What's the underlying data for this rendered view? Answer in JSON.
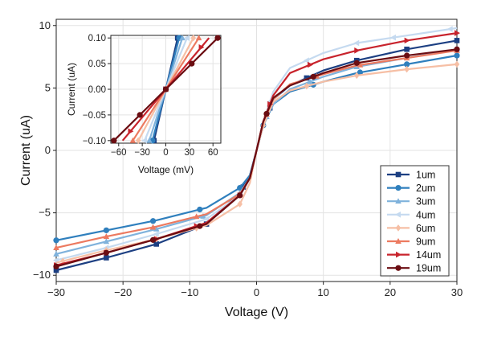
{
  "chart_data": [
    {
      "type": "line",
      "title": "",
      "xlabel": "Voltage (V)",
      "ylabel": "Current (uA)",
      "xlim": [
        -30,
        30
      ],
      "ylim": [
        -10.5,
        10.5
      ],
      "xticks": [
        -30,
        -20,
        -10,
        0,
        10,
        20,
        30
      ],
      "xtick_labels": [
        "−30",
        "−20",
        "−10",
        "0",
        "10",
        "20",
        "30"
      ],
      "yticks": [
        -10,
        -5,
        0,
        5,
        10
      ],
      "ytick_labels": [
        "−10",
        "−5",
        "0",
        "5",
        "10"
      ],
      "grid": true,
      "legend_position": "bottom-right",
      "series": [
        {
          "name": "1um",
          "color": "#1c3f82",
          "marker": "square",
          "x": [
            -30,
            -22.5,
            -15,
            -7.5,
            -2.5,
            -1,
            0,
            1,
            2.5,
            5,
            10,
            15,
            22.5,
            30
          ],
          "y": [
            -9.6,
            -8.6,
            -7.5,
            -5.9,
            -3.4,
            -2.0,
            0,
            2.0,
            4.1,
            5.2,
            6.4,
            7.2,
            8.1,
            8.8
          ],
          "markers_x": [
            -30,
            -22.5,
            -15,
            -7.5,
            -2,
            2,
            7.5,
            15,
            22.5,
            30
          ]
        },
        {
          "name": "2um",
          "color": "#2f7fbd",
          "marker": "circle",
          "x": [
            -30,
            -22.5,
            -15,
            -7.5,
            -2.5,
            -1,
            0,
            1,
            2.5,
            5,
            10,
            15,
            22.5,
            30
          ],
          "y": [
            -7.2,
            -6.4,
            -5.6,
            -4.6,
            -3.0,
            -2.0,
            0,
            2.0,
            3.7,
            4.7,
            5.5,
            6.2,
            6.9,
            7.6
          ],
          "markers_x": [
            -30,
            -22.5,
            -15.5,
            -8.5,
            -2.5,
            1,
            8.5,
            15.5,
            22.5,
            30
          ]
        },
        {
          "name": "3um",
          "color": "#7fb2dc",
          "marker": "triangle-up",
          "x": [
            -30,
            -22.5,
            -15,
            -7.5,
            -2.5,
            -1,
            0,
            1,
            2.5,
            5,
            10,
            15,
            22.5,
            30
          ],
          "y": [
            -8.3,
            -7.3,
            -6.3,
            -5.2,
            -3.4,
            -2.2,
            0,
            2.2,
            3.7,
            4.9,
            5.9,
            6.7,
            7.4,
            8.1
          ],
          "markers_x": [
            -30,
            -22.5,
            -15,
            -8,
            -2.5,
            1.5,
            8,
            15,
            22.5,
            30
          ]
        },
        {
          "name": "4um",
          "color": "#c5daf0",
          "marker": "triangle-left",
          "x": [
            -30,
            -22.5,
            -15,
            -7.5,
            -2.5,
            -1,
            0,
            1,
            2.5,
            5,
            10,
            15,
            22.5,
            30
          ],
          "y": [
            -8.8,
            -7.8,
            -6.7,
            -5.5,
            -3.6,
            -2.3,
            0,
            2.3,
            4.7,
            6.6,
            7.8,
            8.6,
            9.2,
            9.8
          ],
          "markers_x": [
            -30,
            -22.5,
            -15,
            -7.5,
            -2.5,
            2,
            7.5,
            15,
            20.5,
            29
          ]
        },
        {
          "name": "6um",
          "color": "#f6bfa5",
          "marker": "diamond",
          "x": [
            -30,
            -22.5,
            -15,
            -7.5,
            -2.5,
            -1,
            0,
            1,
            2.5,
            5,
            10,
            15,
            22.5,
            30
          ],
          "y": [
            -9.0,
            -8.0,
            -7.1,
            -6.0,
            -4.3,
            -2.6,
            0,
            2.0,
            3.9,
            4.8,
            5.5,
            6.0,
            6.5,
            6.9
          ],
          "markers_x": [
            -29,
            -22.5,
            -15,
            -9,
            -2.5,
            1,
            7.5,
            15,
            22.5,
            30
          ]
        },
        {
          "name": "9um",
          "color": "#ec7a60",
          "marker": "triangle-up",
          "x": [
            -30,
            -22.5,
            -15,
            -7.5,
            -2.5,
            -1,
            0,
            1,
            2.5,
            5,
            10,
            15,
            22.5,
            30
          ],
          "y": [
            -7.8,
            -6.9,
            -6.1,
            -5.1,
            -3.5,
            -2.2,
            0,
            2.3,
            4.1,
            5.3,
            6.1,
            6.8,
            7.4,
            8.0
          ],
          "markers_x": [
            -30,
            -22.5,
            -15.5,
            -9,
            -2.5,
            1.5,
            9,
            15.5,
            22.5,
            30
          ]
        },
        {
          "name": "14um",
          "color": "#c8232c",
          "marker": "triangle-right",
          "x": [
            -30,
            -22.5,
            -15,
            -7.5,
            -2.5,
            -1,
            0,
            1,
            2.5,
            5,
            10,
            15,
            22.5,
            30
          ],
          "y": [
            -9.2,
            -8.2,
            -7.1,
            -5.8,
            -3.6,
            -2.2,
            0,
            2.3,
            4.4,
            6.2,
            7.3,
            8.0,
            8.8,
            9.4
          ],
          "markers_x": [
            -30,
            -22.5,
            -15,
            -9,
            -2.5,
            2,
            8,
            15,
            22.5,
            30
          ]
        },
        {
          "name": "19um",
          "color": "#6b0d12",
          "marker": "circle",
          "x": [
            -30,
            -22.5,
            -15,
            -7.5,
            -2.5,
            -1,
            0,
            1,
            2.5,
            5,
            10,
            15,
            22.5,
            30
          ],
          "y": [
            -9.3,
            -8.2,
            -7.1,
            -5.9,
            -3.6,
            -2.2,
            0,
            2.3,
            4.2,
            5.2,
            6.2,
            7.0,
            7.6,
            8.1
          ],
          "markers_x": [
            -30,
            -22.5,
            -15.5,
            -8.5,
            -2.5,
            1.5,
            8.5,
            15,
            22.5,
            30
          ]
        }
      ]
    },
    {
      "type": "line",
      "title": "",
      "xlabel": "Voltage (mV)",
      "ylabel": "Current (uA)",
      "xlim": [
        -70,
        70
      ],
      "ylim": [
        -0.105,
        0.105
      ],
      "xticks": [
        -60,
        -30,
        0,
        30,
        60
      ],
      "xtick_labels": [
        "−60",
        "−30",
        "0",
        "30",
        "60"
      ],
      "yticks": [
        -0.1,
        -0.05,
        0,
        0.05,
        0.1
      ],
      "ytick_labels": [
        "−0.10",
        "−0.05",
        "0.00",
        "0.05",
        "0.10"
      ],
      "grid": true,
      "series": [
        {
          "name": "1um",
          "color": "#1c3f82",
          "marker": "square",
          "x": [
            -15,
            15
          ],
          "y": [
            -0.1,
            0.1
          ],
          "markers_x": [
            -15,
            0,
            15
          ]
        },
        {
          "name": "2um",
          "color": "#2f7fbd",
          "marker": "circle",
          "x": [
            -17,
            17
          ],
          "y": [
            -0.1,
            0.1
          ],
          "markers_x": [
            -17,
            0,
            17
          ]
        },
        {
          "name": "3um",
          "color": "#7fb2dc",
          "marker": "triangle-up",
          "x": [
            -21,
            21
          ],
          "y": [
            -0.1,
            0.1
          ],
          "markers_x": [
            -21,
            0,
            21
          ]
        },
        {
          "name": "4um",
          "color": "#c5daf0",
          "marker": "triangle-left",
          "x": [
            -27,
            27
          ],
          "y": [
            -0.1,
            0.1
          ],
          "markers_x": [
            -27,
            0,
            27
          ]
        },
        {
          "name": "6um",
          "color": "#f6bfa5",
          "marker": "diamond",
          "x": [
            -35,
            35
          ],
          "y": [
            -0.1,
            0.1
          ],
          "markers_x": [
            -35,
            0,
            35
          ]
        },
        {
          "name": "9um",
          "color": "#ec7a60",
          "marker": "triangle-up",
          "x": [
            -42,
            42
          ],
          "y": [
            -0.1,
            0.1
          ],
          "markers_x": [
            -42,
            0,
            42
          ]
        },
        {
          "name": "14um",
          "color": "#c8232c",
          "marker": "triangle-right",
          "x": [
            -55,
            55
          ],
          "y": [
            -0.1,
            0.1
          ],
          "markers_x": [
            -45,
            0,
            45
          ]
        },
        {
          "name": "19um",
          "color": "#6b0d12",
          "marker": "circle",
          "x": [
            -66,
            66
          ],
          "y": [
            -0.1,
            0.1
          ],
          "markers_x": [
            -66,
            -33,
            0,
            33,
            66
          ]
        }
      ]
    }
  ]
}
